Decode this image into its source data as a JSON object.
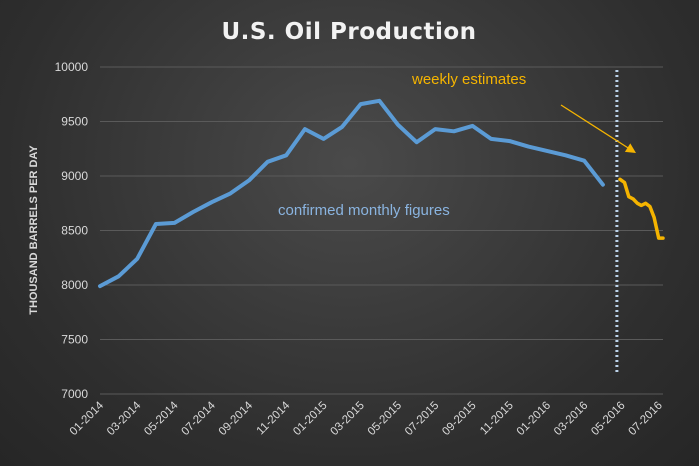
{
  "chart_data": {
    "type": "line",
    "title": "U.S. Oil Production",
    "xlabel": "",
    "ylabel": "THOUSAND BARRELS PER DAY",
    "ylim": [
      7000,
      10000
    ],
    "yticks": [
      "7000",
      "7500",
      "8000",
      "8500",
      "9000",
      "9500",
      "10000"
    ],
    "xticks": [
      "01-2014",
      "03-2014",
      "05-2014",
      "07-2014",
      "09-2014",
      "11-2014",
      "01-2015",
      "03-2015",
      "05-2015",
      "07-2015",
      "09-2015",
      "11-2015",
      "01-2016",
      "03-2016",
      "05-2016",
      "07-2016"
    ],
    "grid": true,
    "legend": "none",
    "series": [
      {
        "color": "#5b9bd5",
        "x": [
          "2014-01",
          "2014-02",
          "2014-03",
          "2014-04",
          "2014-05",
          "2014-06",
          "2014-07",
          "2014-08",
          "2014-09",
          "2014-10",
          "2014-11",
          "2014-12",
          "2015-01",
          "2015-02",
          "2015-03",
          "2015-04",
          "2015-05",
          "2015-06",
          "2015-07",
          "2015-08",
          "2015-09",
          "2015-10",
          "2015-11",
          "2015-12",
          "2016-01",
          "2016-02",
          "2016-03",
          "2016-04"
        ],
        "values": [
          7990,
          8080,
          8240,
          8560,
          8570,
          8670,
          8760,
          8840,
          8960,
          9130,
          9190,
          9430,
          9340,
          9450,
          9660,
          9690,
          9470,
          9310,
          9430,
          9410,
          9460,
          9340,
          9320,
          9270,
          9230,
          9190,
          9140,
          8920
        ]
      },
      {
        "color": "#f5b400",
        "x": [
          "2016-04-29",
          "2016-05-06",
          "2016-05-13",
          "2016-05-20",
          "2016-05-27",
          "2016-06-03",
          "2016-06-10",
          "2016-06-17",
          "2016-06-24",
          "2016-07-01",
          "2016-07-08"
        ],
        "values": [
          8970,
          8940,
          8810,
          8790,
          8750,
          8730,
          8750,
          8720,
          8620,
          8430,
          8430
        ]
      }
    ],
    "annotations": {
      "confirmed": "confirmed monthly figures",
      "weekly": "weekly estimates"
    },
    "colors": {
      "grid": "#5a5a5a",
      "divider": "#bcd3ea",
      "arrow": "#f5b400"
    }
  }
}
